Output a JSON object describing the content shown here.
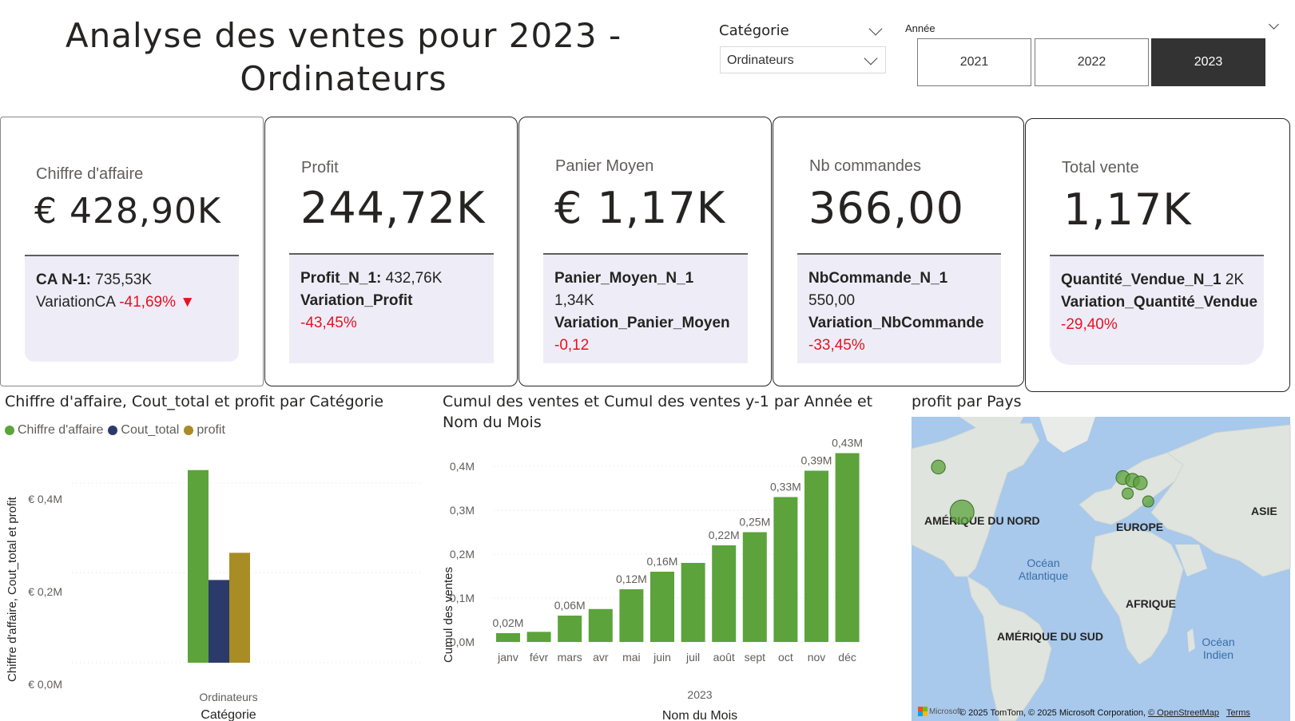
{
  "title": "Analyse des ventes pour 2023 - Ordinateurs",
  "category_slicer": {
    "label": "Catégorie",
    "value": "Ordinateurs"
  },
  "year_slicer": {
    "label": "Année",
    "options": [
      "2021",
      "2022",
      "2023"
    ],
    "selected": "2023"
  },
  "kpis": [
    {
      "label": "Chiffre d'affaire",
      "value": "€ 428,90K",
      "line1_bold": "CA N-1:",
      "line1_value": "735,53K",
      "line2_text": "VariationCA",
      "line2_value": "-41,69%",
      "line2_arrow": "▼"
    },
    {
      "label": "Profit",
      "value": "244,72K",
      "line1_bold": "Profit_N_1:",
      "line1_value": "432,76K",
      "line2_bold": "Variation_Profit",
      "line3_value": "-43,45%"
    },
    {
      "label": "Panier Moyen",
      "value": "€ 1,17K",
      "line1_bold": "Panier_Moyen_N_1",
      "line1_value": "1,34K",
      "line2_bold": "Variation_Panier_Moyen",
      "line3_value": "-0,12"
    },
    {
      "label": "Nb commandes",
      "value": "366,00",
      "line1_bold": "NbCommande_N_1",
      "line1_value": "550,00",
      "line2_bold": "Variation_NbCommande",
      "line3_value": "-33,45%"
    },
    {
      "label": "Total vente",
      "value": "1,17K",
      "line1_bold": "Quantité_Vendue_N_1",
      "line1_value": "2K",
      "line2_bold": "Variation_Quantité_Vendue",
      "line3_value": "-29,40%"
    }
  ],
  "colors": {
    "green": "#5ca33b",
    "navy": "#2b3a6b",
    "gold": "#a88c24",
    "negative": "#e81123",
    "panel": "#eeedf7"
  },
  "chart1": {
    "title": "Chiffre d'affaire, Cout_total et profit par Catégorie",
    "legend": [
      "Chiffre d'affaire",
      "Cout_total",
      "profit"
    ],
    "y_ticks": [
      "€ 0,4M",
      "€ 0,2M",
      "€ 0,0M"
    ],
    "ylabel": "Chiffre d'affaire, Cout_total et profit",
    "xlabel": "Catégorie"
  },
  "chart2": {
    "title": "Cumul des ventes et Cumul des ventes y-1 par Année et Nom du Mois",
    "y_ticks": [
      "0,4M",
      "0,3M",
      "0,2M",
      "0,1M",
      "0,0M"
    ],
    "ylabel": "Cumul des ventes",
    "xlabel": "Nom du Mois",
    "year_label": "2023"
  },
  "chart3": {
    "title": "profit par Pays",
    "continents": [
      "AMÉRIQUE DU NORD",
      "EUROPE",
      "ASIE",
      "AFRIQUE",
      "AMÉRIQUE DU SUD"
    ],
    "oceans": [
      "Océan Atlantique",
      "Océan Indien"
    ],
    "credit_logo": "Microsoft",
    "credit_text": "© 2025 TomTom, © 2025 Microsoft Corporation,",
    "credit_osm": "© OpenStreetMap",
    "credit_terms": "Terms"
  },
  "chart_data": [
    {
      "type": "bar",
      "categories": [
        "Ordinateurs"
      ],
      "series": [
        {
          "name": "Chiffre d'affaire",
          "values": [
            428900
          ]
        },
        {
          "name": "Cout_total",
          "values": [
            184180
          ]
        },
        {
          "name": "profit",
          "values": [
            244720
          ]
        }
      ],
      "title": "Chiffre d'affaire, Cout_total et profit par Catégorie",
      "xlabel": "Catégorie",
      "ylabel": "Chiffre d'affaire, Cout_total et profit",
      "ylim": [
        0,
        450000
      ],
      "legend": "top-left",
      "grid": true
    },
    {
      "type": "bar",
      "categories": [
        "janv",
        "févr",
        "mars",
        "avr",
        "mai",
        "juin",
        "juil",
        "août",
        "sept",
        "oct",
        "nov",
        "déc"
      ],
      "values": [
        0.02,
        0.023,
        0.06,
        0.075,
        0.12,
        0.16,
        0.18,
        0.22,
        0.25,
        0.33,
        0.39,
        0.43
      ],
      "data_labels": [
        "0,02M",
        "",
        "0,06M",
        "",
        "0,12M",
        "0,16M",
        "",
        "0,22M",
        "0,25M",
        "0,33M",
        "0,39M",
        "0,43M"
      ],
      "title": "Cumul des ventes et Cumul des ventes y-1 par Année et Nom du Mois",
      "xlabel": "Nom du Mois",
      "ylabel": "Cumul des ventes",
      "ylim": [
        0,
        0.45
      ],
      "grid": true
    },
    {
      "type": "scatter",
      "title": "profit par Pays",
      "bubbles": [
        {
          "lon": -113,
          "lat": 56,
          "value": 2
        },
        {
          "lon": -98,
          "lat": 39,
          "value": 9
        },
        {
          "lon": 4,
          "lat": 52,
          "value": 2
        },
        {
          "lon": 10,
          "lat": 51,
          "value": 2
        },
        {
          "lon": 15,
          "lat": 50,
          "value": 2
        },
        {
          "lon": 7,
          "lat": 46,
          "value": 1
        },
        {
          "lon": 20,
          "lat": 43,
          "value": 1
        }
      ]
    }
  ]
}
